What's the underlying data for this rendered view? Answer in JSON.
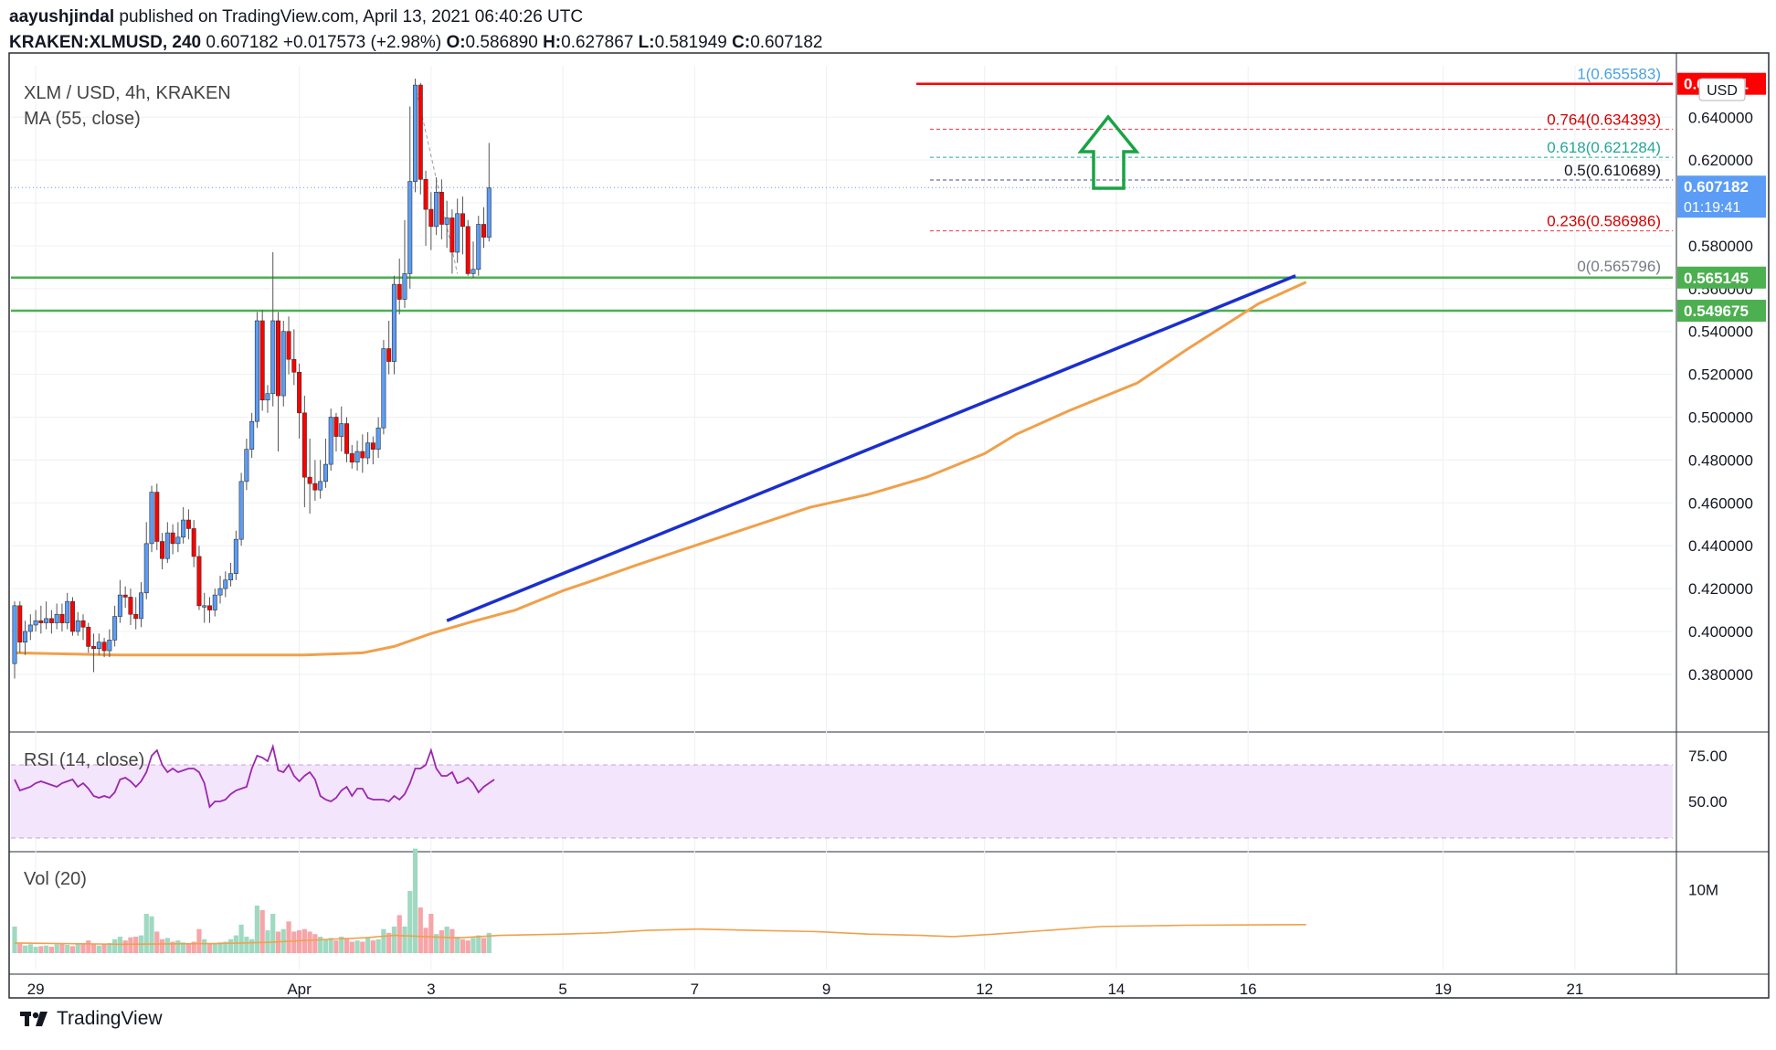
{
  "header": {
    "author": "aayushjindal",
    "published": "published on TradingView.com, April 13, 2021 06:40:26 UTC",
    "symbol": "KRAKEN:XLMUSD, 240",
    "last": "0.607182",
    "change": "+0.017573 (+2.98%)",
    "o_label": "O:",
    "o_value": "0.586890",
    "h_label": "H:",
    "h_value": "0.627867",
    "l_label": "L:",
    "l_value": "0.581949",
    "c_label": "C:",
    "c_value": "0.607182"
  },
  "footer": {
    "brand": "TradingView"
  },
  "colors": {
    "up": "#5b9cf6",
    "down": "#ff0000",
    "ma": "#f0a04b",
    "rsi": "#9c27b0",
    "support": "#4caf50",
    "trend": "#1b2fcc",
    "arrow": "#1aa345"
  },
  "chart_data": {
    "type": "candlestick",
    "title": "XLM / USD, 4h, KRAKEN",
    "ma_label": "MA (55, close)",
    "currency_button": "USD",
    "y_ticks": [
      "0.380000",
      "0.400000",
      "0.420000",
      "0.440000",
      "0.460000",
      "0.480000",
      "0.500000",
      "0.520000",
      "0.540000",
      "0.560000",
      "0.580000",
      "0.600000",
      "0.620000",
      "0.640000"
    ],
    "ylim": [
      0.368,
      0.664
    ],
    "x_ticks": [
      "29",
      "Apr",
      "3",
      "5",
      "7",
      "9",
      "12",
      "14",
      "16",
      "19",
      "21"
    ],
    "x_tick_index": [
      4,
      54,
      79,
      104,
      129,
      154,
      184,
      209,
      234,
      271,
      296
    ],
    "last_price": "0.607182",
    "countdown": "01:19:41",
    "resistance_label": "0.655581",
    "support_levels": [
      {
        "value": 0.565145,
        "label": "0.565145"
      },
      {
        "value": 0.549675,
        "label": "0.549675"
      }
    ],
    "fib_levels": [
      {
        "ratio": "1",
        "value": 0.655583,
        "label": "1(0.655583)"
      },
      {
        "ratio": "0.764",
        "value": 0.634393,
        "label": "0.764(0.634393)"
      },
      {
        "ratio": "0.618",
        "value": 0.621284,
        "label": "0.618(0.621284)"
      },
      {
        "ratio": "0.5",
        "value": 0.610689,
        "label": "0.5(0.610689)"
      },
      {
        "ratio": "0.236",
        "value": 0.586986,
        "label": "0.236(0.586986)"
      },
      {
        "ratio": "0",
        "value": 0.565796,
        "label": "0(0.565796)"
      }
    ],
    "trendline": {
      "start_index": 82,
      "start_value": 0.405,
      "end_index": 243,
      "end_value": 0.566
    },
    "candles": [
      [
        0.385,
        0.412,
        0.414,
        0.378
      ],
      [
        0.412,
        0.395,
        0.414,
        0.39
      ],
      [
        0.395,
        0.4,
        0.405,
        0.389
      ],
      [
        0.4,
        0.403,
        0.408,
        0.396
      ],
      [
        0.403,
        0.405,
        0.41,
        0.4
      ],
      [
        0.405,
        0.404,
        0.412,
        0.399
      ],
      [
        0.404,
        0.406,
        0.414,
        0.401
      ],
      [
        0.406,
        0.404,
        0.41,
        0.399
      ],
      [
        0.404,
        0.408,
        0.413,
        0.401
      ],
      [
        0.408,
        0.404,
        0.413,
        0.4
      ],
      [
        0.404,
        0.414,
        0.418,
        0.401
      ],
      [
        0.414,
        0.4,
        0.416,
        0.398
      ],
      [
        0.4,
        0.405,
        0.409,
        0.398
      ],
      [
        0.405,
        0.402,
        0.408,
        0.396
      ],
      [
        0.402,
        0.393,
        0.404,
        0.39
      ],
      [
        0.393,
        0.392,
        0.399,
        0.381
      ],
      [
        0.392,
        0.395,
        0.399,
        0.389
      ],
      [
        0.395,
        0.391,
        0.397,
        0.388
      ],
      [
        0.391,
        0.396,
        0.401,
        0.388
      ],
      [
        0.396,
        0.407,
        0.412,
        0.393
      ],
      [
        0.407,
        0.417,
        0.424,
        0.404
      ],
      [
        0.417,
        0.416,
        0.421,
        0.411
      ],
      [
        0.416,
        0.408,
        0.42,
        0.403
      ],
      [
        0.408,
        0.406,
        0.416,
        0.401
      ],
      [
        0.406,
        0.418,
        0.423,
        0.402
      ],
      [
        0.418,
        0.441,
        0.451,
        0.415
      ],
      [
        0.441,
        0.465,
        0.468,
        0.437
      ],
      [
        0.465,
        0.442,
        0.469,
        0.438
      ],
      [
        0.442,
        0.434,
        0.446,
        0.429
      ],
      [
        0.434,
        0.446,
        0.451,
        0.432
      ],
      [
        0.446,
        0.441,
        0.45,
        0.436
      ],
      [
        0.441,
        0.444,
        0.451,
        0.437
      ],
      [
        0.444,
        0.452,
        0.458,
        0.441
      ],
      [
        0.452,
        0.448,
        0.457,
        0.443
      ],
      [
        0.448,
        0.435,
        0.452,
        0.43
      ],
      [
        0.435,
        0.412,
        0.44,
        0.41
      ],
      [
        0.412,
        0.412,
        0.418,
        0.404
      ],
      [
        0.412,
        0.41,
        0.416,
        0.404
      ],
      [
        0.41,
        0.417,
        0.42,
        0.407
      ],
      [
        0.417,
        0.42,
        0.426,
        0.413
      ],
      [
        0.42,
        0.424,
        0.428,
        0.416
      ],
      [
        0.424,
        0.427,
        0.432,
        0.421
      ],
      [
        0.427,
        0.443,
        0.447,
        0.424
      ],
      [
        0.443,
        0.47,
        0.474,
        0.44
      ],
      [
        0.47,
        0.485,
        0.49,
        0.466
      ],
      [
        0.485,
        0.498,
        0.502,
        0.481
      ],
      [
        0.498,
        0.545,
        0.549,
        0.495
      ],
      [
        0.545,
        0.508,
        0.55,
        0.503
      ],
      [
        0.508,
        0.511,
        0.515,
        0.502
      ],
      [
        0.511,
        0.545,
        0.577,
        0.505
      ],
      [
        0.545,
        0.51,
        0.549,
        0.484
      ],
      [
        0.51,
        0.54,
        0.545,
        0.505
      ],
      [
        0.54,
        0.527,
        0.547,
        0.52
      ],
      [
        0.527,
        0.521,
        0.541,
        0.515
      ],
      [
        0.521,
        0.502,
        0.525,
        0.49
      ],
      [
        0.502,
        0.472,
        0.51,
        0.458
      ],
      [
        0.472,
        0.469,
        0.49,
        0.455
      ],
      [
        0.469,
        0.466,
        0.48,
        0.461
      ],
      [
        0.466,
        0.47,
        0.48,
        0.462
      ],
      [
        0.47,
        0.478,
        0.49,
        0.467
      ],
      [
        0.478,
        0.5,
        0.504,
        0.475
      ],
      [
        0.5,
        0.491,
        0.502,
        0.484
      ],
      [
        0.491,
        0.497,
        0.505,
        0.484
      ],
      [
        0.497,
        0.483,
        0.5,
        0.479
      ],
      [
        0.483,
        0.479,
        0.487,
        0.476
      ],
      [
        0.479,
        0.484,
        0.489,
        0.475
      ],
      [
        0.484,
        0.481,
        0.492,
        0.474
      ],
      [
        0.481,
        0.488,
        0.493,
        0.478
      ],
      [
        0.488,
        0.485,
        0.491,
        0.478
      ],
      [
        0.485,
        0.495,
        0.5,
        0.481
      ],
      [
        0.495,
        0.532,
        0.536,
        0.492
      ],
      [
        0.532,
        0.526,
        0.545,
        0.52
      ],
      [
        0.526,
        0.562,
        0.566,
        0.52
      ],
      [
        0.562,
        0.555,
        0.574,
        0.548
      ],
      [
        0.555,
        0.567,
        0.592,
        0.551
      ],
      [
        0.567,
        0.61,
        0.645,
        0.56
      ],
      [
        0.61,
        0.655,
        0.658,
        0.605
      ],
      [
        0.655,
        0.611,
        0.656,
        0.604
      ],
      [
        0.611,
        0.597,
        0.615,
        0.58
      ],
      [
        0.597,
        0.589,
        0.605,
        0.578
      ],
      [
        0.589,
        0.605,
        0.612,
        0.585
      ],
      [
        0.605,
        0.59,
        0.611,
        0.583
      ],
      [
        0.59,
        0.593,
        0.601,
        0.579
      ],
      [
        0.593,
        0.577,
        0.597,
        0.567
      ],
      [
        0.577,
        0.595,
        0.602,
        0.572
      ],
      [
        0.595,
        0.589,
        0.603,
        0.576
      ],
      [
        0.589,
        0.567,
        0.592,
        0.566
      ],
      [
        0.567,
        0.569,
        0.582,
        0.565
      ],
      [
        0.569,
        0.59,
        0.594,
        0.566
      ],
      [
        0.59,
        0.584,
        0.598,
        0.579
      ],
      [
        0.584,
        0.607,
        0.628,
        0.582
      ]
    ],
    "ma": [
      0.39,
      0.389,
      0.389,
      0.389,
      0.39,
      0.393,
      0.399,
      0.404,
      0.41,
      0.419,
      0.424,
      0.431,
      0.44,
      0.449,
      0.458,
      0.464,
      0.472,
      0.483,
      0.492,
      0.503,
      0.516,
      0.531,
      0.553,
      0.563
    ],
    "ma_index": [
      0,
      20,
      38,
      55,
      66,
      72,
      79,
      86,
      95,
      104,
      110,
      118,
      129,
      140,
      151,
      162,
      173,
      184,
      190,
      200,
      213,
      222,
      236,
      245
    ],
    "rsi_label": "RSI (14, close)",
    "rsi_ticks": [
      "75.00",
      "50.00"
    ],
    "rsi_levels": [
      70,
      30
    ],
    "rsi_ylim": [
      26,
      84
    ],
    "rsi": [
      62,
      56,
      57,
      58,
      60,
      61,
      60,
      59,
      58,
      60,
      61,
      62,
      58,
      60,
      57,
      53,
      52,
      53,
      52,
      55,
      62,
      63,
      61,
      58,
      61,
      66,
      75,
      78,
      70,
      66,
      68,
      66,
      67,
      68,
      68,
      66,
      60,
      47,
      50,
      50,
      51,
      54,
      56,
      57,
      58,
      68,
      75,
      74,
      72,
      80,
      67,
      66,
      70,
      64,
      61,
      64,
      66,
      62,
      53,
      51,
      50,
      52,
      56,
      58,
      53,
      57,
      57,
      52,
      51,
      51,
      51,
      50,
      53,
      51,
      54,
      60,
      68,
      68,
      70,
      78,
      68,
      64,
      64,
      66,
      60,
      61,
      63,
      60,
      55,
      58,
      60,
      62
    ],
    "vol_label": "Vol (20)",
    "vol_tick": "10M",
    "vol_ylim": [
      0,
      15
    ],
    "volume": [
      4.2,
      1.5,
      1.2,
      1.4,
      1.0,
      1.1,
      1.2,
      1.0,
      1.4,
      1.5,
      1.3,
      1.1,
      1.4,
      1.6,
      2.0,
      1.5,
      1.2,
      1.4,
      1.6,
      2.2,
      2.6,
      2.0,
      2.5,
      2.6,
      2.8,
      6.2,
      5.8,
      3.4,
      2.2,
      2.4,
      1.8,
      2.0,
      1.7,
      1.5,
      1.8,
      3.8,
      2.2,
      1.6,
      1.5,
      1.7,
      1.8,
      2.2,
      2.8,
      4.5,
      2.6,
      2.2,
      7.5,
      6.8,
      3.6,
      6.2,
      3.4,
      3.8,
      5.0,
      3.4,
      3.6,
      3.8,
      3.4,
      3.0,
      2.6,
      2.2,
      2.4,
      2.0,
      2.6,
      2.2,
      1.8,
      2.0,
      1.8,
      2.4,
      2.0,
      2.2,
      3.8,
      3.2,
      4.2,
      6.0,
      4.2,
      9.8,
      16.5,
      7.2,
      4.0,
      6.2,
      3.0,
      3.6,
      4.2,
      3.8,
      2.6,
      2.2,
      2.0,
      2.4,
      2.8,
      2.4,
      3.2
    ],
    "vol_ma": [
      1.6,
      1.4,
      1.5,
      1.7,
      2.2,
      2.4,
      2.8,
      2.6,
      2.4,
      2.8,
      3.0,
      3.2,
      3.6,
      3.8,
      3.6,
      3.4,
      3.0,
      2.8,
      2.6,
      3.0,
      3.6,
      4.2,
      4.4,
      4.5
    ],
    "vol_ma_index": [
      0,
      20,
      38,
      48,
      60,
      66,
      72,
      78,
      84,
      92,
      104,
      112,
      120,
      130,
      140,
      152,
      162,
      172,
      178,
      186,
      196,
      206,
      222,
      245
    ]
  }
}
